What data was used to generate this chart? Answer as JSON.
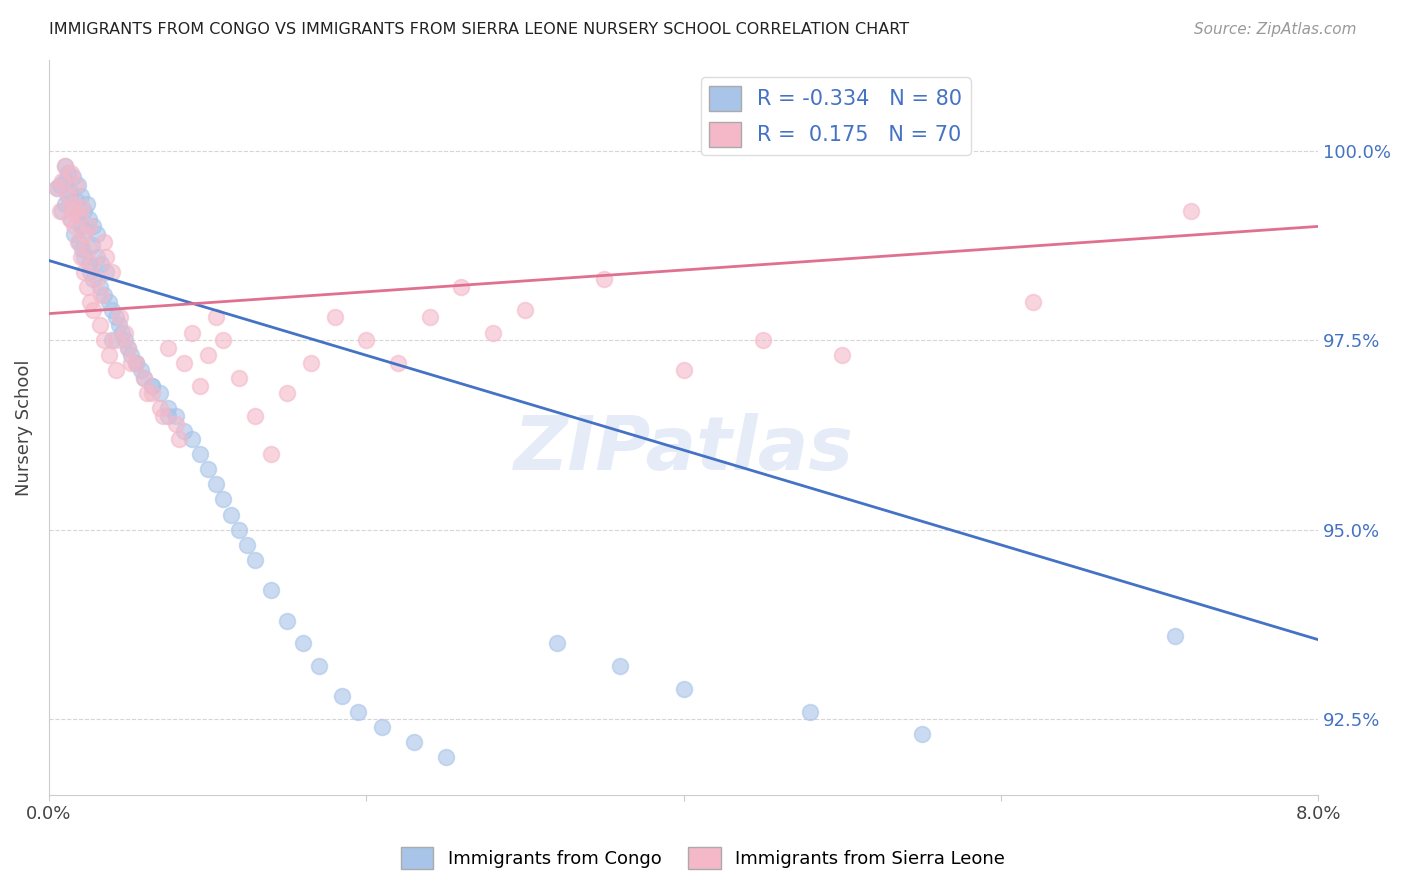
{
  "title": "IMMIGRANTS FROM CONGO VS IMMIGRANTS FROM SIERRA LEONE NURSERY SCHOOL CORRELATION CHART",
  "source": "Source: ZipAtlas.com",
  "ylabel": "Nursery School",
  "ytick_labels": [
    "92.5%",
    "95.0%",
    "97.5%",
    "100.0%"
  ],
  "ytick_values": [
    92.5,
    95.0,
    97.5,
    100.0
  ],
  "xlim": [
    0.0,
    8.0
  ],
  "ylim": [
    91.5,
    101.2
  ],
  "legend_blue_label": "Immigrants from Congo",
  "legend_pink_label": "Immigrants from Sierra Leone",
  "R_blue": -0.334,
  "N_blue": 80,
  "R_pink": 0.175,
  "N_pink": 70,
  "blue_color": "#a8c4e8",
  "blue_line_color": "#4472c4",
  "pink_color": "#f4b8c8",
  "pink_line_color": "#e07090",
  "blue_line_x": [
    0.0,
    8.0
  ],
  "blue_line_y": [
    98.55,
    93.55
  ],
  "pink_line_x": [
    0.0,
    8.0
  ],
  "pink_line_y": [
    97.85,
    99.0
  ],
  "blue_scatter_x": [
    0.05,
    0.07,
    0.08,
    0.1,
    0.1,
    0.1,
    0.12,
    0.12,
    0.13,
    0.14,
    0.15,
    0.15,
    0.16,
    0.17,
    0.18,
    0.18,
    0.19,
    0.2,
    0.2,
    0.21,
    0.22,
    0.22,
    0.23,
    0.24,
    0.25,
    0.25,
    0.26,
    0.27,
    0.28,
    0.28,
    0.3,
    0.3,
    0.32,
    0.33,
    0.35,
    0.36,
    0.38,
    0.4,
    0.42,
    0.44,
    0.46,
    0.48,
    0.5,
    0.52,
    0.55,
    0.58,
    0.6,
    0.65,
    0.7,
    0.75,
    0.8,
    0.85,
    0.9,
    0.95,
    1.0,
    1.05,
    1.1,
    1.15,
    1.2,
    1.25,
    1.3,
    1.4,
    1.5,
    1.6,
    1.7,
    1.85,
    1.95,
    2.1,
    2.3,
    2.5,
    0.4,
    0.55,
    0.65,
    0.75,
    3.2,
    3.6,
    4.0,
    4.8,
    5.5,
    7.1
  ],
  "blue_scatter_y": [
    99.5,
    99.55,
    99.2,
    99.6,
    99.3,
    99.8,
    99.4,
    99.7,
    99.45,
    99.1,
    99.25,
    99.65,
    98.9,
    99.35,
    99.15,
    99.55,
    98.8,
    99.0,
    99.4,
    98.7,
    99.2,
    98.6,
    98.95,
    99.3,
    98.5,
    99.1,
    98.4,
    98.75,
    98.3,
    99.0,
    98.6,
    98.9,
    98.2,
    98.5,
    98.1,
    98.4,
    98.0,
    97.9,
    97.8,
    97.7,
    97.6,
    97.5,
    97.4,
    97.3,
    97.2,
    97.1,
    97.0,
    96.9,
    96.8,
    96.6,
    96.5,
    96.3,
    96.2,
    96.0,
    95.8,
    95.6,
    95.4,
    95.2,
    95.0,
    94.8,
    94.6,
    94.2,
    93.8,
    93.5,
    93.2,
    92.8,
    92.6,
    92.4,
    92.2,
    92.0,
    97.5,
    97.2,
    96.9,
    96.5,
    93.5,
    93.2,
    92.9,
    92.6,
    92.3,
    93.6
  ],
  "pink_scatter_x": [
    0.05,
    0.07,
    0.08,
    0.1,
    0.12,
    0.13,
    0.14,
    0.15,
    0.16,
    0.17,
    0.18,
    0.19,
    0.2,
    0.21,
    0.22,
    0.23,
    0.24,
    0.25,
    0.26,
    0.27,
    0.28,
    0.3,
    0.32,
    0.33,
    0.35,
    0.36,
    0.38,
    0.4,
    0.42,
    0.45,
    0.48,
    0.5,
    0.55,
    0.6,
    0.65,
    0.7,
    0.75,
    0.8,
    0.85,
    0.9,
    0.95,
    1.0,
    1.05,
    1.1,
    1.2,
    1.3,
    1.4,
    1.5,
    1.65,
    1.8,
    2.0,
    2.2,
    2.4,
    2.6,
    2.8,
    3.0,
    3.5,
    4.0,
    4.5,
    5.0,
    0.15,
    0.25,
    0.35,
    0.42,
    0.52,
    0.62,
    0.72,
    0.82,
    6.2,
    7.2
  ],
  "pink_scatter_y": [
    99.5,
    99.2,
    99.6,
    99.8,
    99.4,
    99.1,
    99.7,
    99.3,
    99.0,
    99.55,
    98.8,
    99.15,
    98.6,
    99.25,
    98.4,
    98.9,
    98.2,
    98.7,
    98.0,
    98.5,
    97.9,
    98.3,
    97.7,
    98.1,
    97.5,
    98.6,
    97.3,
    98.4,
    97.1,
    97.8,
    97.6,
    97.4,
    97.2,
    97.0,
    96.8,
    96.6,
    97.4,
    96.4,
    97.2,
    97.6,
    96.9,
    97.3,
    97.8,
    97.5,
    97.0,
    96.5,
    96.0,
    96.8,
    97.2,
    97.8,
    97.5,
    97.2,
    97.8,
    98.2,
    97.6,
    97.9,
    98.3,
    97.1,
    97.5,
    97.3,
    99.2,
    99.0,
    98.8,
    97.5,
    97.2,
    96.8,
    96.5,
    96.2,
    98.0,
    99.2
  ]
}
